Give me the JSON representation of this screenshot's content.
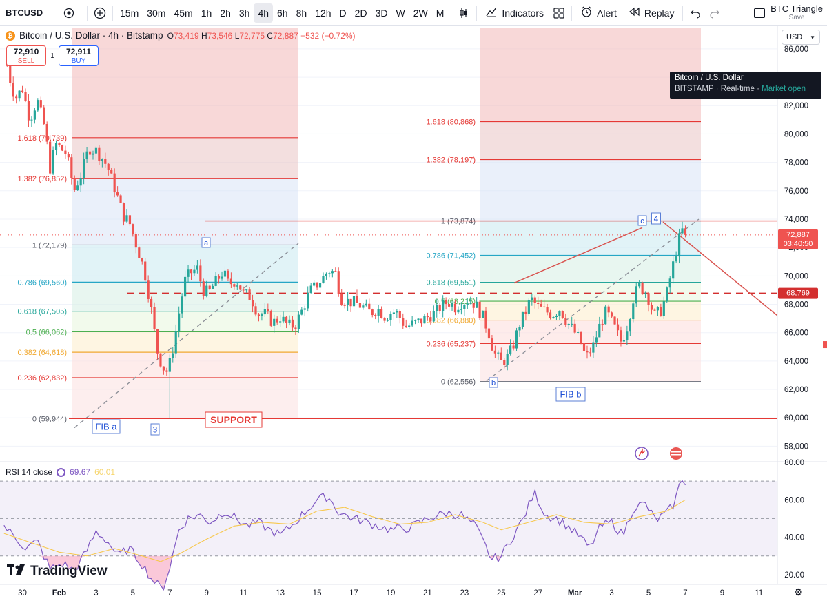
{
  "toolbar": {
    "symbol": "BTCUSD",
    "intervals": [
      "15m",
      "30m",
      "45m",
      "1h",
      "2h",
      "3h",
      "4h",
      "6h",
      "8h",
      "12h",
      "D",
      "2D",
      "3D",
      "W",
      "2W",
      "M"
    ],
    "active_interval": "4h",
    "indicators_label": "Indicators",
    "alert_label": "Alert",
    "replay_label": "Replay",
    "layout_name": "BTC Triangle",
    "layout_save": "Save"
  },
  "legend": {
    "title": "Bitcoin / U.S. Dollar · 4h · Bitstamp",
    "o_label": "O",
    "o": "73,419",
    "h_label": "H",
    "h": "73,546",
    "l_label": "L",
    "l": "72,775",
    "c_label": "C",
    "c": "72,887",
    "change": "−532 (−0.72%)"
  },
  "trade": {
    "sell_price": "72,910",
    "sell_label": "SELL",
    "spread": "1",
    "buy_price": "72,911",
    "buy_label": "BUY"
  },
  "tooltip": {
    "name": "Bitcoin / U.S. Dollar",
    "exchange": "BITSTAMP",
    "realtime": "Real-time",
    "market": "Market open"
  },
  "currency": "USD",
  "rsi_legend": {
    "label": "RSI 14 close",
    "value": "69.67",
    "ma_value": "60.01"
  },
  "brand": "TradingView",
  "colors": {
    "up": "#26a69a",
    "down": "#ef5350",
    "fib_red": "#e53935",
    "rsi": "#7e57c2",
    "rsi_ma": "#f7c84e"
  },
  "chart_data": [
    {
      "type": "candlestick",
      "title": "Bitcoin / U.S. Dollar · 4h · Bitstamp",
      "ylim": [
        57000,
        87500
      ],
      "y_ticks": [
        58000,
        60000,
        62000,
        64000,
        66000,
        68000,
        70000,
        72000,
        74000,
        76000,
        78000,
        80000,
        82000,
        84000,
        86000
      ],
      "y_tick_labels": [
        "58,000",
        "60,000",
        "62,000",
        "64,000",
        "66,000",
        "68,000",
        "70,000",
        "72,000",
        "74,000",
        "76,000",
        "78,000",
        "80,000",
        "82,000",
        "84,000",
        "86,000"
      ],
      "x_tick_labels": [
        "30",
        "Feb",
        "3",
        "5",
        "7",
        "9",
        "11",
        "13",
        "15",
        "17",
        "19",
        "21",
        "23",
        "25",
        "27",
        "Mar",
        "3",
        "5",
        "7",
        "9",
        "11"
      ],
      "x_ticks_day": [
        -2,
        0,
        2,
        4,
        6,
        8,
        10,
        12,
        14,
        16,
        18,
        20,
        22,
        24,
        26,
        28,
        30,
        32,
        34,
        36,
        38
      ],
      "price_anchors": [
        [
          -3.0,
          85800
        ],
        [
          -2.7,
          84000
        ],
        [
          -2.4,
          82500
        ],
        [
          -2.0,
          83200
        ],
        [
          -1.6,
          81000
        ],
        [
          -1.2,
          82400
        ],
        [
          -0.8,
          80500
        ],
        [
          -0.5,
          77600
        ],
        [
          -0.2,
          79300
        ],
        [
          0.4,
          78600
        ],
        [
          0.8,
          76000
        ],
        [
          1.2,
          77200
        ],
        [
          1.6,
          79000
        ],
        [
          2.0,
          78800
        ],
        [
          2.4,
          78200
        ],
        [
          2.7,
          77400
        ],
        [
          3.1,
          75800
        ],
        [
          3.5,
          74200
        ],
        [
          3.8,
          73800
        ],
        [
          4.2,
          72100
        ],
        [
          4.6,
          70500
        ],
        [
          5.0,
          67600
        ],
        [
          5.3,
          64800
        ],
        [
          5.6,
          63600
        ],
        [
          5.9,
          63200
        ],
        [
          6.2,
          65100
        ],
        [
          6.5,
          67400
        ],
        [
          6.8,
          69600
        ],
        [
          7.1,
          70200
        ],
        [
          7.5,
          70500
        ],
        [
          7.8,
          69000
        ],
        [
          8.1,
          68800
        ],
        [
          8.5,
          69600
        ],
        [
          8.9,
          70300
        ],
        [
          9.2,
          69400
        ],
        [
          9.6,
          69700
        ],
        [
          10.0,
          68800
        ],
        [
          10.4,
          68500
        ],
        [
          10.8,
          67300
        ],
        [
          11.2,
          67300
        ],
        [
          11.6,
          66700
        ],
        [
          12.0,
          67100
        ],
        [
          12.4,
          66500
        ],
        [
          12.8,
          66500
        ],
        [
          13.2,
          67600
        ],
        [
          13.6,
          68900
        ],
        [
          14.0,
          69400
        ],
        [
          14.3,
          69800
        ],
        [
          14.6,
          70400
        ],
        [
          15.0,
          70200
        ],
        [
          15.3,
          68400
        ],
        [
          15.7,
          68200
        ],
        [
          16.1,
          68100
        ],
        [
          16.5,
          67800
        ],
        [
          16.9,
          67400
        ],
        [
          17.3,
          67700
        ],
        [
          17.7,
          67100
        ],
        [
          18.1,
          67500
        ],
        [
          18.4,
          67300
        ],
        [
          18.8,
          66400
        ],
        [
          19.2,
          66600
        ],
        [
          19.6,
          66800
        ],
        [
          20.0,
          67100
        ],
        [
          20.4,
          67400
        ],
        [
          20.7,
          67800
        ],
        [
          21.1,
          68200
        ],
        [
          21.5,
          67800
        ],
        [
          21.8,
          68100
        ],
        [
          22.2,
          68300
        ],
        [
          22.6,
          68000
        ],
        [
          23.0,
          67100
        ],
        [
          23.3,
          66100
        ],
        [
          23.6,
          64600
        ],
        [
          24.0,
          63900
        ],
        [
          24.3,
          64200
        ],
        [
          24.6,
          64900
        ],
        [
          25.0,
          66600
        ],
        [
          25.3,
          67400
        ],
        [
          25.6,
          68400
        ],
        [
          26.0,
          67800
        ],
        [
          26.4,
          67500
        ],
        [
          26.8,
          67300
        ],
        [
          27.2,
          67700
        ],
        [
          27.5,
          66900
        ],
        [
          27.9,
          66200
        ],
        [
          28.3,
          65400
        ],
        [
          28.6,
          64200
        ],
        [
          29.0,
          65100
        ],
        [
          29.4,
          66700
        ],
        [
          29.7,
          67500
        ],
        [
          30.1,
          66500
        ],
        [
          30.5,
          65400
        ],
        [
          30.8,
          66200
        ],
        [
          31.2,
          68600
        ],
        [
          31.5,
          69300
        ],
        [
          31.9,
          68800
        ],
        [
          32.3,
          67200
        ],
        [
          32.7,
          67600
        ],
        [
          33.0,
          68800
        ],
        [
          33.3,
          70600
        ],
        [
          33.6,
          72300
        ],
        [
          33.8,
          73250
        ],
        [
          34.0,
          72887
        ]
      ],
      "fib_a": {
        "name": "FIB a",
        "levels": [
          {
            "label": "1.618 (79,739)",
            "value": 79739
          },
          {
            "label": "1.382 (76,852)",
            "value": 76852
          },
          {
            "label": "1 (72,179)",
            "value": 72179
          },
          {
            "label": "0.786 (69,560)",
            "value": 69560
          },
          {
            "label": "0.618 (67,505)",
            "value": 67505
          },
          {
            "label": "0.5 (66,062)",
            "value": 66062
          },
          {
            "label": "0.382 (64,618)",
            "value": 64618
          },
          {
            "label": "0.236 (62,832)",
            "value": 62832
          },
          {
            "label": "0 (59,944)",
            "value": 59944
          }
        ]
      },
      "fib_b": {
        "name": "FIB b",
        "levels": [
          {
            "label": "1.618 (80,868)",
            "value": 80868
          },
          {
            "label": "1.382 (78,197)",
            "value": 78197
          },
          {
            "label": "1 (73,874)",
            "value": 73874
          },
          {
            "label": "0.786 (71,452)",
            "value": 71452
          },
          {
            "label": "0.618 (69,551)",
            "value": 69551
          },
          {
            "label": "0.5 (68,215)",
            "value": 68215
          },
          {
            "label": "0.382 (66,880)",
            "value": 66880
          },
          {
            "label": "0.236 (65,237)",
            "value": 65237
          },
          {
            "label": "0 (62,556)",
            "value": 62556
          }
        ]
      },
      "support": {
        "label": "SUPPORT",
        "value": 59944
      },
      "dashed_level": 68769,
      "resistance_level": 73874,
      "wave_labels": [
        "a",
        "3",
        "b",
        "c",
        "4"
      ],
      "last_price_label": "72,887",
      "countdown": "03:40:50",
      "dashed_level_label": "68,769"
    },
    {
      "type": "line",
      "title": "RSI 14 close",
      "ylim": [
        10,
        81
      ],
      "y_ticks": [
        20,
        40,
        60,
        80
      ],
      "y_tick_labels": [
        "20.00",
        "40.00",
        "60.00",
        "80.00"
      ],
      "bands": [
        30,
        50,
        70
      ],
      "series": [
        {
          "name": "RSI",
          "anchors": [
            [
              -3.0,
              46
            ],
            [
              -2.5,
              41
            ],
            [
              -1.8,
              34
            ],
            [
              -1.2,
              38
            ],
            [
              -0.5,
              23
            ],
            [
              0.2,
              26
            ],
            [
              0.8,
              22
            ],
            [
              1.4,
              31
            ],
            [
              2.0,
              43
            ],
            [
              2.6,
              38
            ],
            [
              3.2,
              30
            ],
            [
              3.8,
              34
            ],
            [
              4.4,
              27
            ],
            [
              5.0,
              18
            ],
            [
              5.6,
              12
            ],
            [
              6.0,
              24
            ],
            [
              6.5,
              44
            ],
            [
              7.0,
              50
            ],
            [
              7.6,
              52
            ],
            [
              8.2,
              48
            ],
            [
              9.0,
              54
            ],
            [
              9.6,
              50
            ],
            [
              10.2,
              46
            ],
            [
              10.8,
              48
            ],
            [
              11.4,
              44
            ],
            [
              12.0,
              41
            ],
            [
              12.6,
              46
            ],
            [
              13.2,
              52
            ],
            [
              14.0,
              60
            ],
            [
              14.6,
              62
            ],
            [
              15.2,
              53
            ],
            [
              16.0,
              50
            ],
            [
              17.0,
              47
            ],
            [
              18.0,
              44
            ],
            [
              19.0,
              45
            ],
            [
              20.0,
              50
            ],
            [
              21.0,
              53
            ],
            [
              21.8,
              52
            ],
            [
              22.6,
              46
            ],
            [
              23.1,
              36
            ],
            [
              23.5,
              28
            ],
            [
              24.0,
              30
            ],
            [
              24.6,
              40
            ],
            [
              25.2,
              50
            ],
            [
              25.8,
              64
            ],
            [
              26.4,
              52
            ],
            [
              27.0,
              50
            ],
            [
              27.6,
              46
            ],
            [
              28.3,
              40
            ],
            [
              28.8,
              34
            ],
            [
              29.4,
              46
            ],
            [
              30.0,
              48
            ],
            [
              30.6,
              41
            ],
            [
              31.2,
              56
            ],
            [
              31.8,
              58
            ],
            [
              32.4,
              49
            ],
            [
              33.0,
              53
            ],
            [
              33.4,
              58
            ],
            [
              33.8,
              72
            ],
            [
              34.0,
              69.67
            ]
          ]
        },
        {
          "name": "RSI MA",
          "anchors": [
            [
              -3.0,
              42
            ],
            [
              -1.5,
              37
            ],
            [
              0.0,
              32
            ],
            [
              1.5,
              30
            ],
            [
              3.0,
              34
            ],
            [
              4.5,
              30
            ],
            [
              5.5,
              27
            ],
            [
              6.5,
              31
            ],
            [
              8.0,
              39
            ],
            [
              9.5,
              46
            ],
            [
              11.0,
              48
            ],
            [
              12.5,
              47
            ],
            [
              14.0,
              54
            ],
            [
              15.5,
              56
            ],
            [
              17.0,
              51
            ],
            [
              18.5,
              47
            ],
            [
              20.0,
              48
            ],
            [
              21.5,
              52
            ],
            [
              23.0,
              48
            ],
            [
              24.0,
              44
            ],
            [
              25.5,
              48
            ],
            [
              27.0,
              52
            ],
            [
              28.5,
              48
            ],
            [
              30.0,
              47
            ],
            [
              31.5,
              51
            ],
            [
              33.0,
              54
            ],
            [
              34.0,
              60.01
            ]
          ]
        }
      ]
    }
  ]
}
